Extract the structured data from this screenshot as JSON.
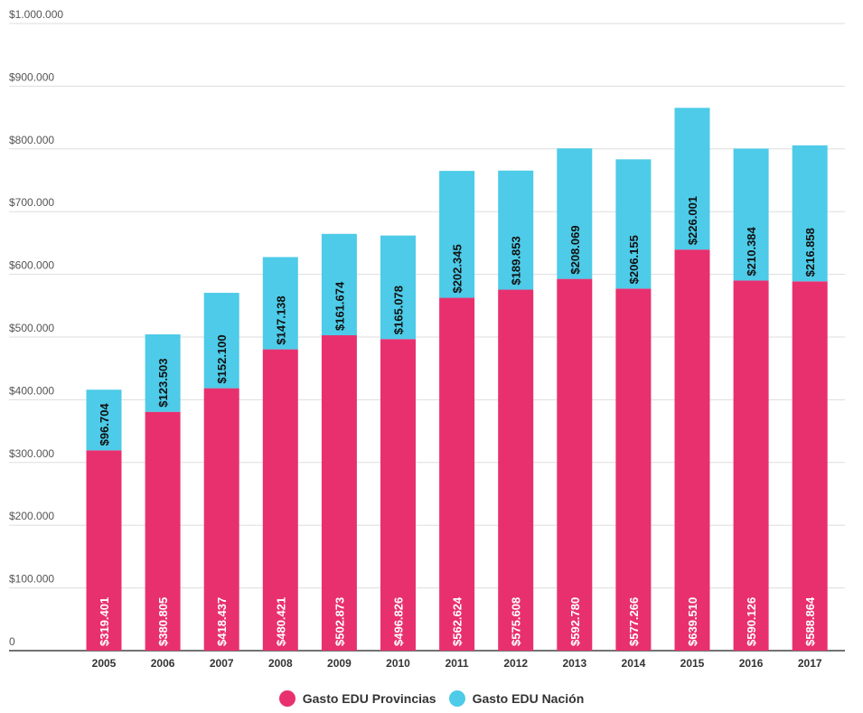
{
  "chart_data": {
    "type": "bar",
    "stacked": true,
    "categories": [
      "2005",
      "2006",
      "2007",
      "2008",
      "2009",
      "2010",
      "2011",
      "2012",
      "2013",
      "2014",
      "2015",
      "2016",
      "2017"
    ],
    "series": [
      {
        "name": "Gasto EDU Provincias",
        "color": "#E8306F",
        "values": [
          319401,
          380805,
          418437,
          480421,
          502873,
          496826,
          562624,
          575608,
          592780,
          577266,
          639510,
          590126,
          588864
        ],
        "labels": [
          "$319.401",
          "$380.805",
          "$418.437",
          "$480.421",
          "$502.873",
          "$496.826",
          "$562.624",
          "$575.608",
          "$592.780",
          "$577.266",
          "$639.510",
          "$590.126",
          "$588.864"
        ]
      },
      {
        "name": "Gasto EDU Nación",
        "color": "#4DCBE8",
        "values": [
          96704,
          123503,
          152100,
          147138,
          161674,
          165078,
          202345,
          189853,
          208069,
          206155,
          226001,
          210384,
          216858
        ],
        "labels": [
          "$96.704",
          "$123.503",
          "$152.100",
          "$147.138",
          "$161.674",
          "$165.078",
          "$202.345",
          "$189.853",
          "$208.069",
          "$206.155",
          "$226.001",
          "$210.384",
          "$216.858"
        ]
      }
    ],
    "ylim": [
      0,
      1000000
    ],
    "yticks": [
      {
        "value": 0,
        "label": "0"
      },
      {
        "value": 100000,
        "label": "$100.000"
      },
      {
        "value": 200000,
        "label": "$200.000"
      },
      {
        "value": 300000,
        "label": "$300.000"
      },
      {
        "value": 400000,
        "label": "$400.000"
      },
      {
        "value": 500000,
        "label": "$500.000"
      },
      {
        "value": 600000,
        "label": "$600.000"
      },
      {
        "value": 700000,
        "label": "$700.000"
      },
      {
        "value": 800000,
        "label": "$800.000"
      },
      {
        "value": 900000,
        "label": "$900.000"
      },
      {
        "value": 1000000,
        "label": "$1.000.000"
      }
    ],
    "grid": true,
    "legend_position": "bottom-center"
  },
  "legend": {
    "provincias": "Gasto EDU Provincias",
    "nacion": "Gasto EDU Nación"
  }
}
